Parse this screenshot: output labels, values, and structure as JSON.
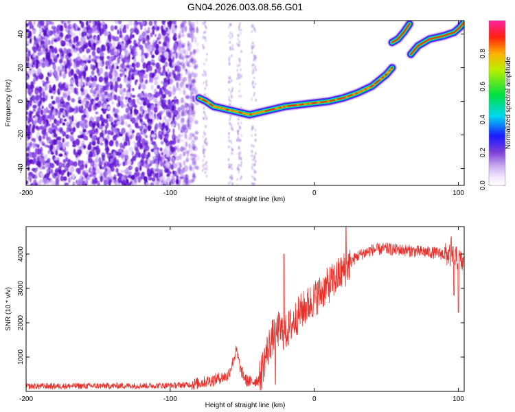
{
  "figure": {
    "title": "GN04.2026.003.08.56.G01"
  },
  "chart_data": [
    {
      "type": "heatmap",
      "title": "GN04.2026.003.08.56.G01",
      "xlabel": "Height of straight line (km)",
      "ylabel": "Frequency (Hz)",
      "xlim": [
        -200,
        104
      ],
      "ylim": [
        -50,
        48
      ],
      "xticks": [
        "-200",
        "-100",
        "0",
        "100"
      ],
      "yticks": [
        "-40",
        "-20",
        "0",
        "20",
        "40"
      ],
      "colorbar": {
        "label": "Normalized spectral amplitude",
        "range": [
          0,
          1
        ],
        "ticks": [
          "0.0",
          "0.2",
          "0.4",
          "0.6",
          "0.8"
        ]
      },
      "noise_region_x": [
        -200,
        -85
      ],
      "tone_track": [
        {
          "x": -80,
          "y": 2
        },
        {
          "x": -75,
          "y": 0
        },
        {
          "x": -70,
          "y": -3
        },
        {
          "x": -65,
          "y": -4
        },
        {
          "x": -60,
          "y": -5
        },
        {
          "x": -55,
          "y": -6
        },
        {
          "x": -50,
          "y": -7
        },
        {
          "x": -45,
          "y": -8
        },
        {
          "x": -40,
          "y": -7
        },
        {
          "x": -35,
          "y": -6
        },
        {
          "x": -30,
          "y": -5
        },
        {
          "x": -25,
          "y": -4
        },
        {
          "x": -20,
          "y": -3
        },
        {
          "x": -10,
          "y": -2
        },
        {
          "x": 0,
          "y": -1
        },
        {
          "x": 10,
          "y": 0
        },
        {
          "x": 20,
          "y": 2
        },
        {
          "x": 30,
          "y": 5
        },
        {
          "x": 40,
          "y": 9
        },
        {
          "x": 50,
          "y": 16
        },
        {
          "x": 54,
          "y": 20
        }
      ],
      "upper_branch_1": [
        {
          "x": 54,
          "y": 35
        },
        {
          "x": 58,
          "y": 37
        },
        {
          "x": 62,
          "y": 41
        },
        {
          "x": 66,
          "y": 46
        }
      ],
      "upper_branch_2": [
        {
          "x": 67,
          "y": 28
        },
        {
          "x": 72,
          "y": 33
        },
        {
          "x": 80,
          "y": 37
        },
        {
          "x": 90,
          "y": 39
        },
        {
          "x": 97,
          "y": 41
        },
        {
          "x": 101,
          "y": 44
        },
        {
          "x": 104,
          "y": 47
        }
      ]
    },
    {
      "type": "line",
      "xlabel": "Height of straight line (km)",
      "ylabel": "SNR (10 * v/v)",
      "xlim": [
        -200,
        104
      ],
      "ylim": [
        0,
        4800
      ],
      "xticks": [
        "-200",
        "-100",
        "0",
        "100"
      ],
      "yticks": [
        "1000",
        "2000",
        "3000",
        "4000"
      ],
      "series": [
        {
          "name": "SNR",
          "color": "#e8302a",
          "envelope": [
            {
              "x": -200,
              "y": 150
            },
            {
              "x": -150,
              "y": 160
            },
            {
              "x": -100,
              "y": 170
            },
            {
              "x": -85,
              "y": 200
            },
            {
              "x": -78,
              "y": 260
            },
            {
              "x": -70,
              "y": 330
            },
            {
              "x": -65,
              "y": 400
            },
            {
              "x": -60,
              "y": 450
            },
            {
              "x": -57,
              "y": 800
            },
            {
              "x": -54,
              "y": 1200
            },
            {
              "x": -51,
              "y": 600
            },
            {
              "x": -47,
              "y": 300
            },
            {
              "x": -43,
              "y": 280
            },
            {
              "x": -38,
              "y": 350
            },
            {
              "x": -34,
              "y": 1000
            },
            {
              "x": -30,
              "y": 1500
            },
            {
              "x": -25,
              "y": 1800
            },
            {
              "x": -20,
              "y": 1700
            },
            {
              "x": -15,
              "y": 2000
            },
            {
              "x": -10,
              "y": 2300
            },
            {
              "x": -5,
              "y": 2500
            },
            {
              "x": 0,
              "y": 2700
            },
            {
              "x": 5,
              "y": 2900
            },
            {
              "x": 10,
              "y": 3100
            },
            {
              "x": 15,
              "y": 3300
            },
            {
              "x": 20,
              "y": 3500
            },
            {
              "x": 25,
              "y": 3750
            },
            {
              "x": 30,
              "y": 3950
            },
            {
              "x": 40,
              "y": 4120
            },
            {
              "x": 50,
              "y": 4150
            },
            {
              "x": 60,
              "y": 4120
            },
            {
              "x": 70,
              "y": 4080
            },
            {
              "x": 80,
              "y": 4050
            },
            {
              "x": 90,
              "y": 4000
            },
            {
              "x": 95,
              "y": 3950
            },
            {
              "x": 100,
              "y": 3850
            },
            {
              "x": 104,
              "y": 3700
            }
          ],
          "spikes": [
            {
              "x": 22,
              "y": 4800
            },
            {
              "x": 100,
              "y": 2300
            },
            {
              "x": 97,
              "y": 2800
            },
            {
              "x": 95,
              "y": 4500
            },
            {
              "x": -27,
              "y": 200
            },
            {
              "x": -21,
              "y": 4000
            }
          ]
        }
      ]
    }
  ]
}
